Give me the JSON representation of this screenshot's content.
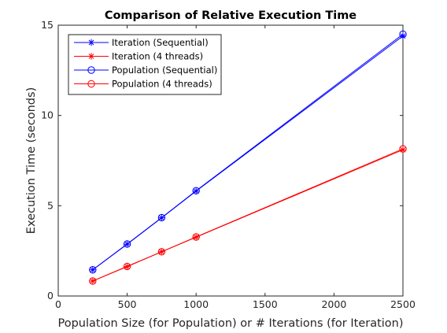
{
  "chart_data": {
    "type": "line",
    "title": "Comparison of Relative Execution Time",
    "xlabel": "Population Size (for Population) or # Iterations (for Iteration)",
    "ylabel": "Execution Time (seconds)",
    "xlim": [
      0,
      2500
    ],
    "ylim": [
      0,
      15
    ],
    "xticks": [
      0,
      500,
      1000,
      1500,
      2000,
      2500
    ],
    "yticks": [
      0,
      5,
      10,
      15
    ],
    "grid": false,
    "legend_position": "top-left",
    "series": [
      {
        "name": "Iteration (Sequential)",
        "color": "#0000ff",
        "marker": "asterisk",
        "x": [
          250,
          500,
          750,
          1000,
          2500
        ],
        "y": [
          1.45,
          2.87,
          4.33,
          5.81,
          14.4
        ]
      },
      {
        "name": "Iteration (4 threads)",
        "color": "#ff0000",
        "marker": "asterisk",
        "x": [
          250,
          500,
          750,
          1000,
          2500
        ],
        "y": [
          0.83,
          1.63,
          2.45,
          3.26,
          8.1
        ]
      },
      {
        "name": "Population (Sequential)",
        "color": "#0000ff",
        "marker": "circle",
        "x": [
          250,
          500,
          750,
          1000,
          2500
        ],
        "y": [
          1.45,
          2.88,
          4.34,
          5.83,
          14.5
        ]
      },
      {
        "name": "Population (4 threads)",
        "color": "#ff0000",
        "marker": "circle",
        "x": [
          250,
          500,
          750,
          1000,
          2500
        ],
        "y": [
          0.83,
          1.64,
          2.45,
          3.27,
          8.15
        ]
      }
    ]
  }
}
